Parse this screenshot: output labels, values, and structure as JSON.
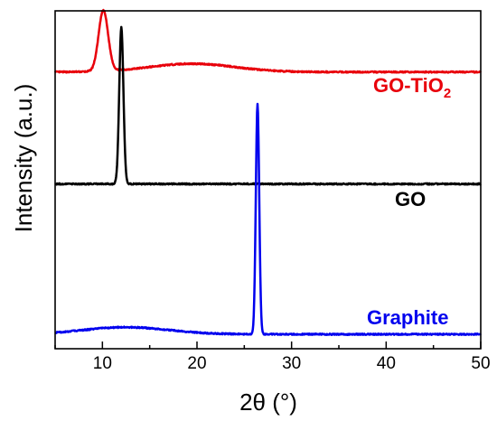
{
  "chart_data": {
    "type": "line",
    "xlabel": "2θ (°)",
    "ylabel": "Intensity (a.u.)",
    "xlim": [
      5,
      50
    ],
    "x_ticks": [
      10,
      20,
      30,
      40,
      50
    ],
    "y_ticks_shown": false,
    "grid": false,
    "legend": "none",
    "series": [
      {
        "name": "GO-TiO2",
        "label_text": "GO-TiO",
        "label_subscript": "2",
        "color": "#e8000b",
        "baseline": 0.82,
        "peaks": [
          {
            "x": 10.1,
            "height": 0.19,
            "width": 0.5
          },
          {
            "x": 19.5,
            "height": 0.026,
            "width": 4.5
          }
        ]
      },
      {
        "name": "GO",
        "label_text": "GO",
        "label_subscript": "",
        "color": "#000000",
        "baseline": 0.47,
        "peaks": [
          {
            "x": 12.0,
            "height": 0.49,
            "width": 0.22
          }
        ]
      },
      {
        "name": "Graphite",
        "label_text": "Graphite",
        "label_subscript": "",
        "color": "#0000ee",
        "baseline": 0.0,
        "peaks": [
          {
            "x": 26.4,
            "height": 0.72,
            "width": 0.18
          },
          {
            "x": 12.5,
            "height": 0.022,
            "width": 4.5
          }
        ]
      }
    ]
  }
}
